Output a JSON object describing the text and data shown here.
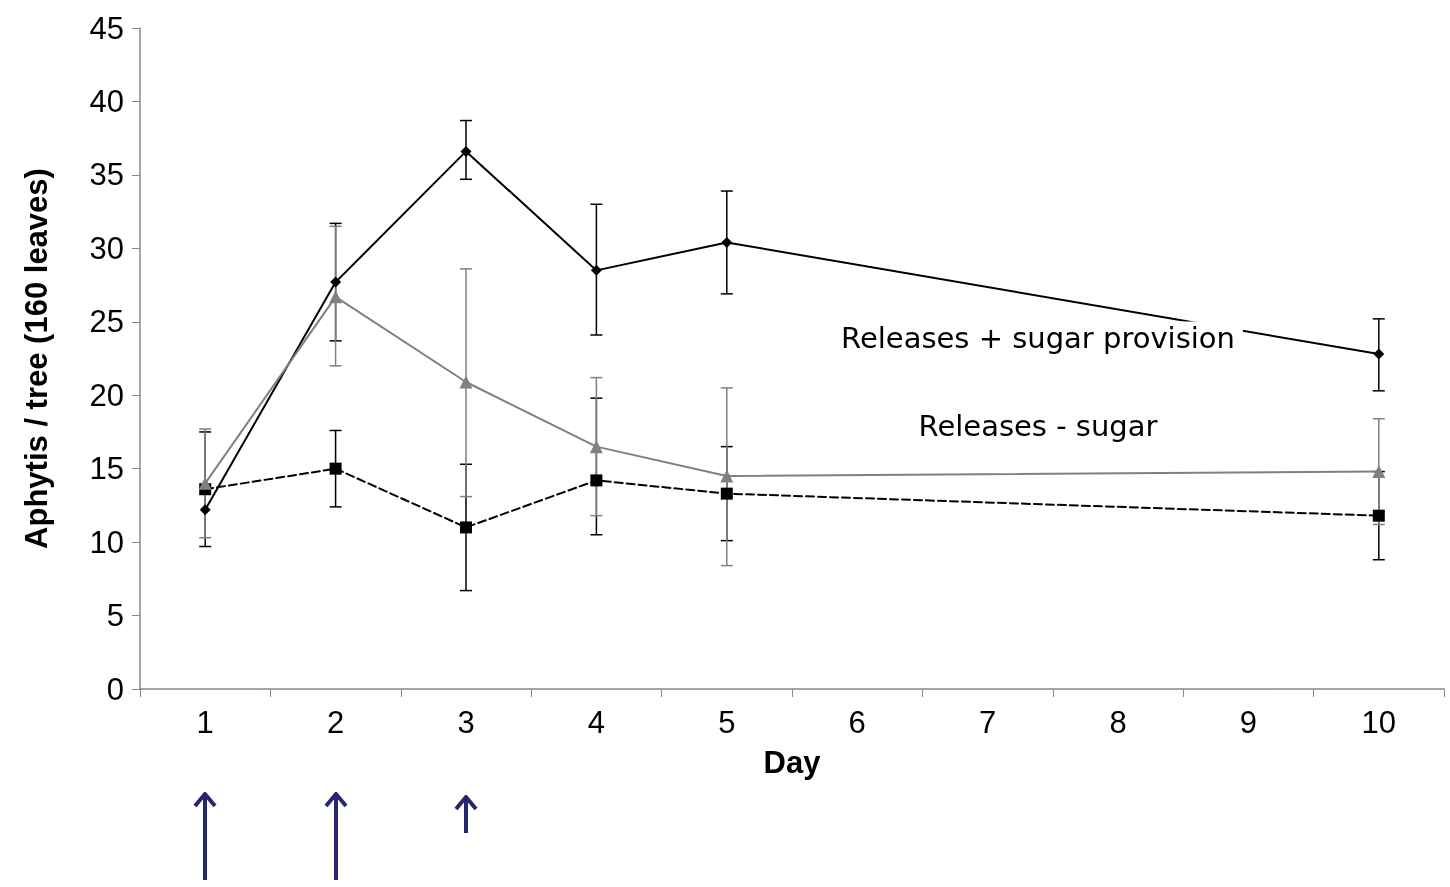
{
  "chart_data": {
    "type": "line",
    "xlabel": "Day",
    "ylabel": "Aphytis / tree (160 leaves)",
    "categories": [
      "1",
      "2",
      "3",
      "4",
      "5",
      "6",
      "7",
      "8",
      "9",
      "10"
    ],
    "ylim": [
      0,
      45
    ],
    "yticks": [
      0,
      5,
      10,
      15,
      20,
      25,
      30,
      35,
      40,
      45
    ],
    "grid": false,
    "legend": false,
    "series": [
      {
        "name": "Releases + sugar provision",
        "color": "#000000",
        "marker": "diamond",
        "line_style": "solid",
        "values": [
          12.2,
          27.7,
          36.6,
          28.5,
          30.4,
          null,
          null,
          null,
          null,
          22.8
        ],
        "errors": [
          [
            9.7,
            17.5
          ],
          [
            23.7,
            31.7
          ],
          [
            34.7,
            38.7
          ],
          [
            24.1,
            33.0
          ],
          [
            26.9,
            33.9
          ],
          null,
          null,
          null,
          null,
          [
            20.3,
            25.2
          ]
        ]
      },
      {
        "color": "#000000",
        "marker": "square",
        "line_style": "dashed",
        "values": [
          13.6,
          15.0,
          11.0,
          14.2,
          13.3,
          null,
          null,
          null,
          null,
          11.8
        ],
        "errors": [
          null,
          [
            12.4,
            17.6
          ],
          [
            6.7,
            15.3
          ],
          [
            10.5,
            19.8
          ],
          [
            10.1,
            16.5
          ],
          null,
          null,
          null,
          null,
          [
            8.8,
            14.8
          ]
        ]
      },
      {
        "name": "Releases - sugar",
        "color": "#808080",
        "marker": "triangle",
        "line_style": "solid",
        "values": [
          14.0,
          26.7,
          20.9,
          16.5,
          14.5,
          null,
          null,
          null,
          null,
          14.8
        ],
        "errors": [
          [
            10.3,
            17.7
          ],
          [
            22.0,
            31.5
          ],
          [
            13.1,
            28.6
          ],
          [
            11.8,
            21.2
          ],
          [
            8.4,
            20.5
          ],
          null,
          null,
          null,
          null,
          [
            11.2,
            18.4
          ]
        ]
      }
    ]
  }
}
